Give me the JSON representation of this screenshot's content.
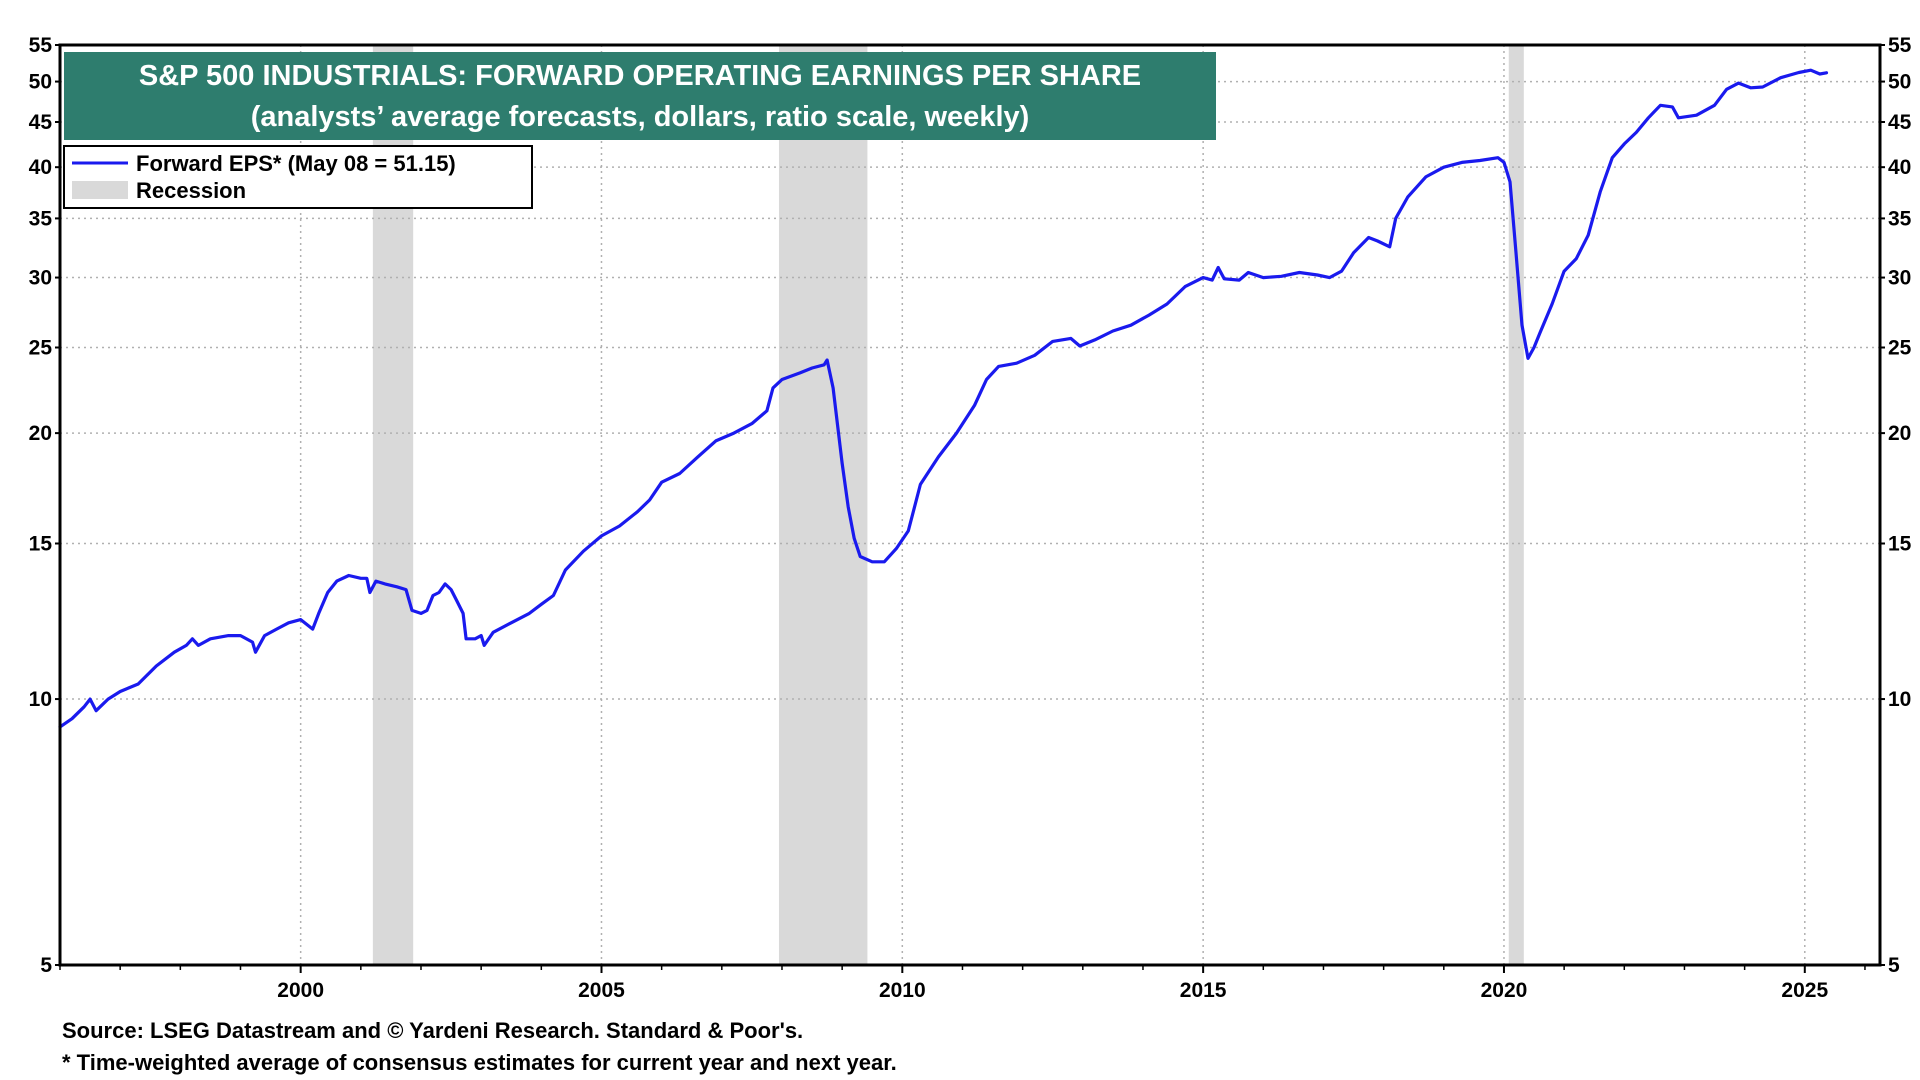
{
  "chart_data": {
    "type": "line",
    "title": "S&P 500 INDUSTRIALS: FORWARD OPERATING EARNINGS PER SHARE",
    "subtitle": "(analysts’ average forecasts, dollars, ratio scale, weekly)",
    "scale": "log",
    "ylim": [
      5,
      55
    ],
    "xlim": [
      1996.0,
      2026.25
    ],
    "y_ticks": [
      5,
      10,
      15,
      20,
      25,
      30,
      35,
      40,
      45,
      50,
      55
    ],
    "y_tick_labels": [
      "5",
      "10",
      "15",
      "20",
      "25",
      "30",
      "35",
      "40",
      "45",
      "50",
      "55"
    ],
    "x_ticks": [
      2000,
      2005,
      2010,
      2015,
      2020,
      2025
    ],
    "x_tick_labels": [
      "2000",
      "2005",
      "2010",
      "2015",
      "2020",
      "2025"
    ],
    "grid": true,
    "legend_position": "top-left",
    "legend": {
      "series_label": "Forward EPS* (May 08 = 51.15)",
      "recession_label": "Recession"
    },
    "colors": {
      "series": "#1a1aee",
      "recession": "#d9d9d9",
      "title_background": "#2e7d6e",
      "grid": "#b0b0b0"
    },
    "recessions": [
      {
        "start": 2001.2,
        "end": 2001.87
      },
      {
        "start": 2007.95,
        "end": 2009.42
      },
      {
        "start": 2020.08,
        "end": 2020.33
      }
    ],
    "series": [
      {
        "name": "Forward EPS*",
        "points": [
          [
            1996.0,
            9.3
          ],
          [
            1996.2,
            9.5
          ],
          [
            1996.4,
            9.8
          ],
          [
            1996.5,
            10.0
          ],
          [
            1996.6,
            9.7
          ],
          [
            1996.8,
            10.0
          ],
          [
            1997.0,
            10.2
          ],
          [
            1997.3,
            10.4
          ],
          [
            1997.6,
            10.9
          ],
          [
            1997.9,
            11.3
          ],
          [
            1998.1,
            11.5
          ],
          [
            1998.2,
            11.7
          ],
          [
            1998.3,
            11.5
          ],
          [
            1998.5,
            11.7
          ],
          [
            1998.8,
            11.8
          ],
          [
            1999.0,
            11.8
          ],
          [
            1999.2,
            11.6
          ],
          [
            1999.25,
            11.3
          ],
          [
            1999.4,
            11.8
          ],
          [
            1999.6,
            12.0
          ],
          [
            1999.8,
            12.2
          ],
          [
            2000.0,
            12.3
          ],
          [
            2000.2,
            12.0
          ],
          [
            2000.3,
            12.5
          ],
          [
            2000.45,
            13.2
          ],
          [
            2000.6,
            13.6
          ],
          [
            2000.8,
            13.8
          ],
          [
            2001.0,
            13.7
          ],
          [
            2001.1,
            13.7
          ],
          [
            2001.15,
            13.2
          ],
          [
            2001.25,
            13.6
          ],
          [
            2001.4,
            13.5
          ],
          [
            2001.6,
            13.4
          ],
          [
            2001.75,
            13.3
          ],
          [
            2001.85,
            12.6
          ],
          [
            2002.0,
            12.5
          ],
          [
            2002.1,
            12.6
          ],
          [
            2002.2,
            13.1
          ],
          [
            2002.3,
            13.2
          ],
          [
            2002.4,
            13.5
          ],
          [
            2002.5,
            13.3
          ],
          [
            2002.6,
            12.9
          ],
          [
            2002.7,
            12.5
          ],
          [
            2002.75,
            11.7
          ],
          [
            2002.9,
            11.7
          ],
          [
            2003.0,
            11.8
          ],
          [
            2003.05,
            11.5
          ],
          [
            2003.2,
            11.9
          ],
          [
            2003.5,
            12.2
          ],
          [
            2003.8,
            12.5
          ],
          [
            2004.0,
            12.8
          ],
          [
            2004.2,
            13.1
          ],
          [
            2004.4,
            14.0
          ],
          [
            2004.7,
            14.7
          ],
          [
            2005.0,
            15.3
          ],
          [
            2005.3,
            15.7
          ],
          [
            2005.6,
            16.3
          ],
          [
            2005.8,
            16.8
          ],
          [
            2006.0,
            17.6
          ],
          [
            2006.3,
            18.0
          ],
          [
            2006.6,
            18.8
          ],
          [
            2006.9,
            19.6
          ],
          [
            2007.2,
            20.0
          ],
          [
            2007.5,
            20.5
          ],
          [
            2007.75,
            21.2
          ],
          [
            2007.85,
            22.5
          ],
          [
            2008.0,
            23.0
          ],
          [
            2008.3,
            23.4
          ],
          [
            2008.5,
            23.7
          ],
          [
            2008.7,
            23.9
          ],
          [
            2008.75,
            24.2
          ],
          [
            2008.85,
            22.5
          ],
          [
            2009.0,
            18.5
          ],
          [
            2009.1,
            16.5
          ],
          [
            2009.2,
            15.2
          ],
          [
            2009.3,
            14.5
          ],
          [
            2009.5,
            14.3
          ],
          [
            2009.7,
            14.3
          ],
          [
            2009.9,
            14.8
          ],
          [
            2010.1,
            15.5
          ],
          [
            2010.3,
            17.5
          ],
          [
            2010.6,
            18.8
          ],
          [
            2010.9,
            20.0
          ],
          [
            2011.2,
            21.5
          ],
          [
            2011.4,
            23.0
          ],
          [
            2011.6,
            23.8
          ],
          [
            2011.9,
            24.0
          ],
          [
            2012.2,
            24.5
          ],
          [
            2012.5,
            25.4
          ],
          [
            2012.8,
            25.6
          ],
          [
            2012.95,
            25.1
          ],
          [
            2013.2,
            25.5
          ],
          [
            2013.5,
            26.1
          ],
          [
            2013.8,
            26.5
          ],
          [
            2014.1,
            27.2
          ],
          [
            2014.4,
            28.0
          ],
          [
            2014.7,
            29.3
          ],
          [
            2015.0,
            30.0
          ],
          [
            2015.15,
            29.8
          ],
          [
            2015.25,
            30.8
          ],
          [
            2015.35,
            29.9
          ],
          [
            2015.6,
            29.8
          ],
          [
            2015.75,
            30.4
          ],
          [
            2016.0,
            30.0
          ],
          [
            2016.3,
            30.1
          ],
          [
            2016.6,
            30.4
          ],
          [
            2016.9,
            30.2
          ],
          [
            2017.1,
            30.0
          ],
          [
            2017.3,
            30.5
          ],
          [
            2017.5,
            32.0
          ],
          [
            2017.75,
            33.3
          ],
          [
            2017.9,
            33.0
          ],
          [
            2018.1,
            32.5
          ],
          [
            2018.2,
            35.0
          ],
          [
            2018.4,
            37.0
          ],
          [
            2018.7,
            39.0
          ],
          [
            2019.0,
            40.0
          ],
          [
            2019.3,
            40.5
          ],
          [
            2019.6,
            40.7
          ],
          [
            2019.9,
            41.0
          ],
          [
            2020.0,
            40.5
          ],
          [
            2020.1,
            38.5
          ],
          [
            2020.2,
            32.0
          ],
          [
            2020.3,
            26.5
          ],
          [
            2020.4,
            24.3
          ],
          [
            2020.5,
            25.0
          ],
          [
            2020.6,
            26.0
          ],
          [
            2020.8,
            28.0
          ],
          [
            2021.0,
            30.5
          ],
          [
            2021.2,
            31.5
          ],
          [
            2021.4,
            33.5
          ],
          [
            2021.6,
            37.5
          ],
          [
            2021.8,
            41.0
          ],
          [
            2022.0,
            42.5
          ],
          [
            2022.2,
            43.8
          ],
          [
            2022.4,
            45.5
          ],
          [
            2022.6,
            47.0
          ],
          [
            2022.8,
            46.8
          ],
          [
            2022.9,
            45.5
          ],
          [
            2023.2,
            45.8
          ],
          [
            2023.5,
            47.0
          ],
          [
            2023.7,
            49.0
          ],
          [
            2023.9,
            49.8
          ],
          [
            2024.1,
            49.2
          ],
          [
            2024.3,
            49.3
          ],
          [
            2024.6,
            50.5
          ],
          [
            2024.9,
            51.2
          ],
          [
            2025.1,
            51.5
          ],
          [
            2025.25,
            51.0
          ],
          [
            2025.36,
            51.15
          ]
        ]
      }
    ]
  },
  "footer": {
    "source": "Source: LSEG Datastream and © Yardeni Research. Standard & Poor's.",
    "note": "* Time-weighted average of consensus estimates for current year and next year."
  }
}
